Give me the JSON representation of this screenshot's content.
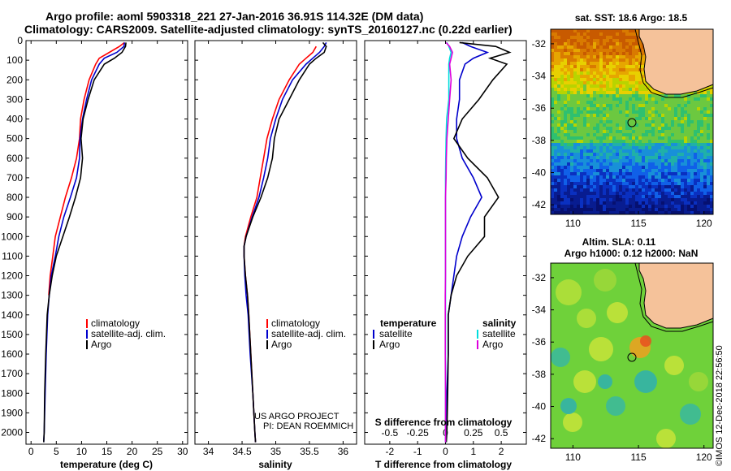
{
  "header": {
    "title_line1": "Argo profile: aoml 5903318_221 27-Jan-2016 36.91S 114.32E (DM data)",
    "title_line2": "Climatology: CARS2009. Satellite-adjusted climatology: synTS_20160127.nc (0.22d earlier)"
  },
  "side_stamp": "©IMOS 12-Dec-2018 22:56:50",
  "colors": {
    "climatology": "#ff0000",
    "satellite": "#0000cc",
    "argo": "#000000",
    "sal_satellite": "#00dddd",
    "sal_argo": "#dd00dd",
    "land": "#f5c29a"
  },
  "depth_ticks": [
    "0",
    "100",
    "200",
    "300",
    "400",
    "500",
    "600",
    "700",
    "800",
    "900",
    "1000",
    "1100",
    "1200",
    "1300",
    "1400",
    "1500",
    "1600",
    "1700",
    "1800",
    "1900",
    "2000"
  ],
  "chart_data": [
    {
      "type": "line",
      "id": "temperature",
      "xlabel": "temperature (deg C)",
      "xlim": [
        -1,
        31
      ],
      "ylim": [
        0,
        2060
      ],
      "y_reversed": true,
      "xticks": [
        "0",
        "5",
        "10",
        "15",
        "20",
        "25",
        "30"
      ],
      "xtick_values": [
        0,
        5,
        10,
        15,
        20,
        25,
        30
      ],
      "legend": [
        "climatology",
        "satellite-adj. clim.",
        "Argo"
      ],
      "series": [
        {
          "name": "climatology",
          "color": "#ff0000",
          "y": [
            10,
            30,
            60,
            90,
            120,
            200,
            300,
            400,
            500,
            600,
            700,
            800,
            900,
            1000,
            1100,
            1200,
            1300
          ],
          "x": [
            18.5,
            17.5,
            15.5,
            13.5,
            12.8,
            11.5,
            10.5,
            9.8,
            9.6,
            9.0,
            8.0,
            6.8,
            5.8,
            4.8,
            4.3,
            3.8,
            3.5
          ]
        },
        {
          "name": "satellite-adj. clim.",
          "color": "#0000cc",
          "y": [
            10,
            30,
            60,
            90,
            120,
            200,
            300,
            400,
            500,
            600,
            700,
            800,
            900,
            1000,
            1100,
            1200,
            1300,
            1400,
            1600,
            1800,
            2000,
            2050
          ],
          "x": [
            18.5,
            18.4,
            17.0,
            14.5,
            13.5,
            12.0,
            11.0,
            10.2,
            9.7,
            9.6,
            9.0,
            7.8,
            6.5,
            5.5,
            4.8,
            4.0,
            3.6,
            3.3,
            3.0,
            2.8,
            2.6,
            2.5
          ]
        },
        {
          "name": "Argo",
          "color": "#000000",
          "y": [
            10,
            30,
            60,
            90,
            120,
            200,
            300,
            400,
            500,
            600,
            700,
            800,
            900,
            1000,
            1100,
            1200,
            1300,
            1400,
            1600,
            1800,
            2000,
            2050
          ],
          "x": [
            18.8,
            18.7,
            18.0,
            16.5,
            14.5,
            12.5,
            11.3,
            10.3,
            9.9,
            10.2,
            9.8,
            8.8,
            7.6,
            6.3,
            5.0,
            4.2,
            3.6,
            3.2,
            2.9,
            2.7,
            2.6,
            2.5
          ]
        }
      ]
    },
    {
      "type": "line",
      "id": "salinity",
      "xlabel": "salinity",
      "xlim": [
        33.8,
        36.2
      ],
      "ylim": [
        0,
        2060
      ],
      "y_reversed": true,
      "xticks": [
        "34",
        "34.5",
        "35",
        "35.5",
        "36"
      ],
      "xtick_values": [
        34,
        34.5,
        35,
        35.5,
        36
      ],
      "legend": [
        "climatology",
        "satellite-adj. clim.",
        "Argo"
      ],
      "annotation": [
        "US ARGO PROJECT",
        "PI: DEAN ROEMMICH"
      ],
      "series": [
        {
          "name": "climatology",
          "color": "#ff0000",
          "y": [
            30,
            60,
            90,
            120,
            200,
            300,
            400,
            500,
            600,
            700,
            800,
            900,
            1000,
            1050,
            1100,
            1200,
            1300,
            1400,
            1600,
            1800,
            2000,
            2050
          ],
          "x": [
            35.6,
            35.55,
            35.45,
            35.35,
            35.2,
            35.05,
            34.95,
            34.87,
            34.82,
            34.77,
            34.72,
            34.63,
            34.55,
            34.53,
            34.53,
            34.55,
            34.58,
            34.6,
            34.63,
            34.66,
            34.69,
            34.7
          ]
        },
        {
          "name": "satellite-adj. clim.",
          "color": "#0000cc",
          "y": [
            10,
            30,
            60,
            90,
            120,
            200,
            300,
            400,
            500,
            600,
            700,
            800,
            900,
            1000,
            1050,
            1100,
            1200,
            1300,
            1400,
            1600,
            1800,
            2000,
            2050
          ],
          "x": [
            35.75,
            35.72,
            35.65,
            35.55,
            35.45,
            35.25,
            35.1,
            35.0,
            34.92,
            34.88,
            34.82,
            34.75,
            34.65,
            34.56,
            34.53,
            34.53,
            34.54,
            34.56,
            34.59,
            34.62,
            34.66,
            34.69,
            34.7
          ]
        },
        {
          "name": "Argo",
          "color": "#000000",
          "y": [
            10,
            30,
            60,
            90,
            120,
            200,
            300,
            400,
            500,
            600,
            700,
            800,
            900,
            1000,
            1050,
            1100,
            1200,
            1300,
            1400,
            1600,
            1800,
            2000,
            2050
          ],
          "x": [
            35.7,
            35.75,
            35.72,
            35.6,
            35.5,
            35.35,
            35.2,
            35.05,
            34.98,
            34.95,
            34.88,
            34.78,
            34.66,
            34.56,
            34.53,
            34.53,
            34.55,
            34.58,
            34.6,
            34.63,
            34.66,
            34.69,
            34.7
          ]
        }
      ]
    },
    {
      "type": "line",
      "id": "difference",
      "xlabel": "T difference from climatology",
      "xlabel2": "S difference from climatology",
      "xlim": [
        -2.9,
        2.9
      ],
      "xlim_s": [
        -0.725,
        0.725
      ],
      "ylim": [
        0,
        2060
      ],
      "y_reversed": true,
      "xticks": [
        "-2",
        "-1",
        "0",
        "1",
        "2"
      ],
      "xtick_values": [
        -2,
        -1,
        0,
        1,
        2
      ],
      "xticks_s": [
        "-0.5",
        "-0.25",
        "0",
        "0.25",
        "0.5"
      ],
      "legend_left_title": "temperature",
      "legend_left": [
        "satellite",
        "Argo"
      ],
      "legend_right_title": "salinity",
      "legend_right": [
        "satellite",
        "Argo"
      ],
      "series": [
        {
          "name": "temperature satellite",
          "color": "#0000cc",
          "y": [
            10,
            30,
            60,
            90,
            120,
            200,
            300,
            400,
            500,
            600,
            700,
            800,
            900,
            1000,
            1100,
            1200,
            1300,
            1400,
            1600,
            1800,
            2000,
            2050
          ],
          "x": [
            0.6,
            0.9,
            1.5,
            1.0,
            0.7,
            0.5,
            0.5,
            0.4,
            0.4,
            0.6,
            1.0,
            1.3,
            0.9,
            0.6,
            0.4,
            0.3,
            0.2,
            0.1,
            0.1,
            0.05,
            0.03,
            0.02
          ]
        },
        {
          "name": "temperature Argo",
          "color": "#000000",
          "y": [
            10,
            30,
            60,
            90,
            120,
            200,
            300,
            400,
            500,
            600,
            700,
            800,
            900,
            1000,
            1100,
            1200,
            1300,
            1400,
            1600,
            1800,
            2000,
            2050
          ],
          "x": [
            0.5,
            1.8,
            2.3,
            1.6,
            2.2,
            1.7,
            1.2,
            0.6,
            0.3,
            0.8,
            1.5,
            1.9,
            1.4,
            1.4,
            0.8,
            0.4,
            0.2,
            0.1,
            0.1,
            0.08,
            0.05,
            0.03
          ]
        },
        {
          "name": "salinity satellite",
          "color": "#00dddd",
          "y": [
            10,
            30,
            60,
            90,
            120,
            200,
            300,
            400,
            500,
            600,
            700,
            800,
            900,
            1000,
            1100,
            1200,
            1300,
            1400,
            1600,
            1800,
            2000,
            2050
          ],
          "x": [
            0.05,
            0.12,
            0.2,
            0.15,
            0.12,
            0.12,
            0.12,
            0.04,
            0.02,
            0.01,
            0.0,
            0.0,
            0.0,
            0.0,
            0.0,
            0.0,
            0.0,
            0.0,
            0.0,
            0.0,
            0.0,
            0.0
          ]
        },
        {
          "name": "salinity Argo",
          "color": "#dd00dd",
          "y": [
            10,
            30,
            60,
            90,
            120,
            200,
            300,
            400,
            500,
            600,
            700,
            800,
            900,
            1000,
            1100,
            1200,
            1300,
            1400,
            1600,
            1800,
            2000,
            2050
          ],
          "x": [
            0.02,
            0.15,
            0.25,
            0.2,
            0.15,
            0.2,
            0.15,
            0.1,
            0.05,
            0.03,
            0.02,
            0.0,
            0.0,
            0.0,
            0.0,
            0.0,
            -0.01,
            -0.01,
            -0.01,
            0.0,
            0.0,
            0.0
          ]
        }
      ]
    }
  ],
  "maps": {
    "sst": {
      "title": "sat. SST: 18.6 Argo: 18.5",
      "lat_ticks": [
        "-32",
        "-34",
        "-36",
        "-38",
        "-40",
        "-42"
      ],
      "lon_ticks": [
        "110",
        "115",
        "120"
      ],
      "float_lon": 114.32,
      "float_lat": -36.91
    },
    "sla": {
      "title_line1": "Altim. SLA: 0.11",
      "title_line2": "Argo h1000: 0.12 h2000: NaN",
      "lat_ticks": [
        "-32",
        "-34",
        "-36",
        "-38",
        "-40",
        "-42"
      ],
      "lon_ticks": [
        "110",
        "115",
        "120"
      ],
      "float_lon": 114.32,
      "float_lat": -36.91
    }
  }
}
